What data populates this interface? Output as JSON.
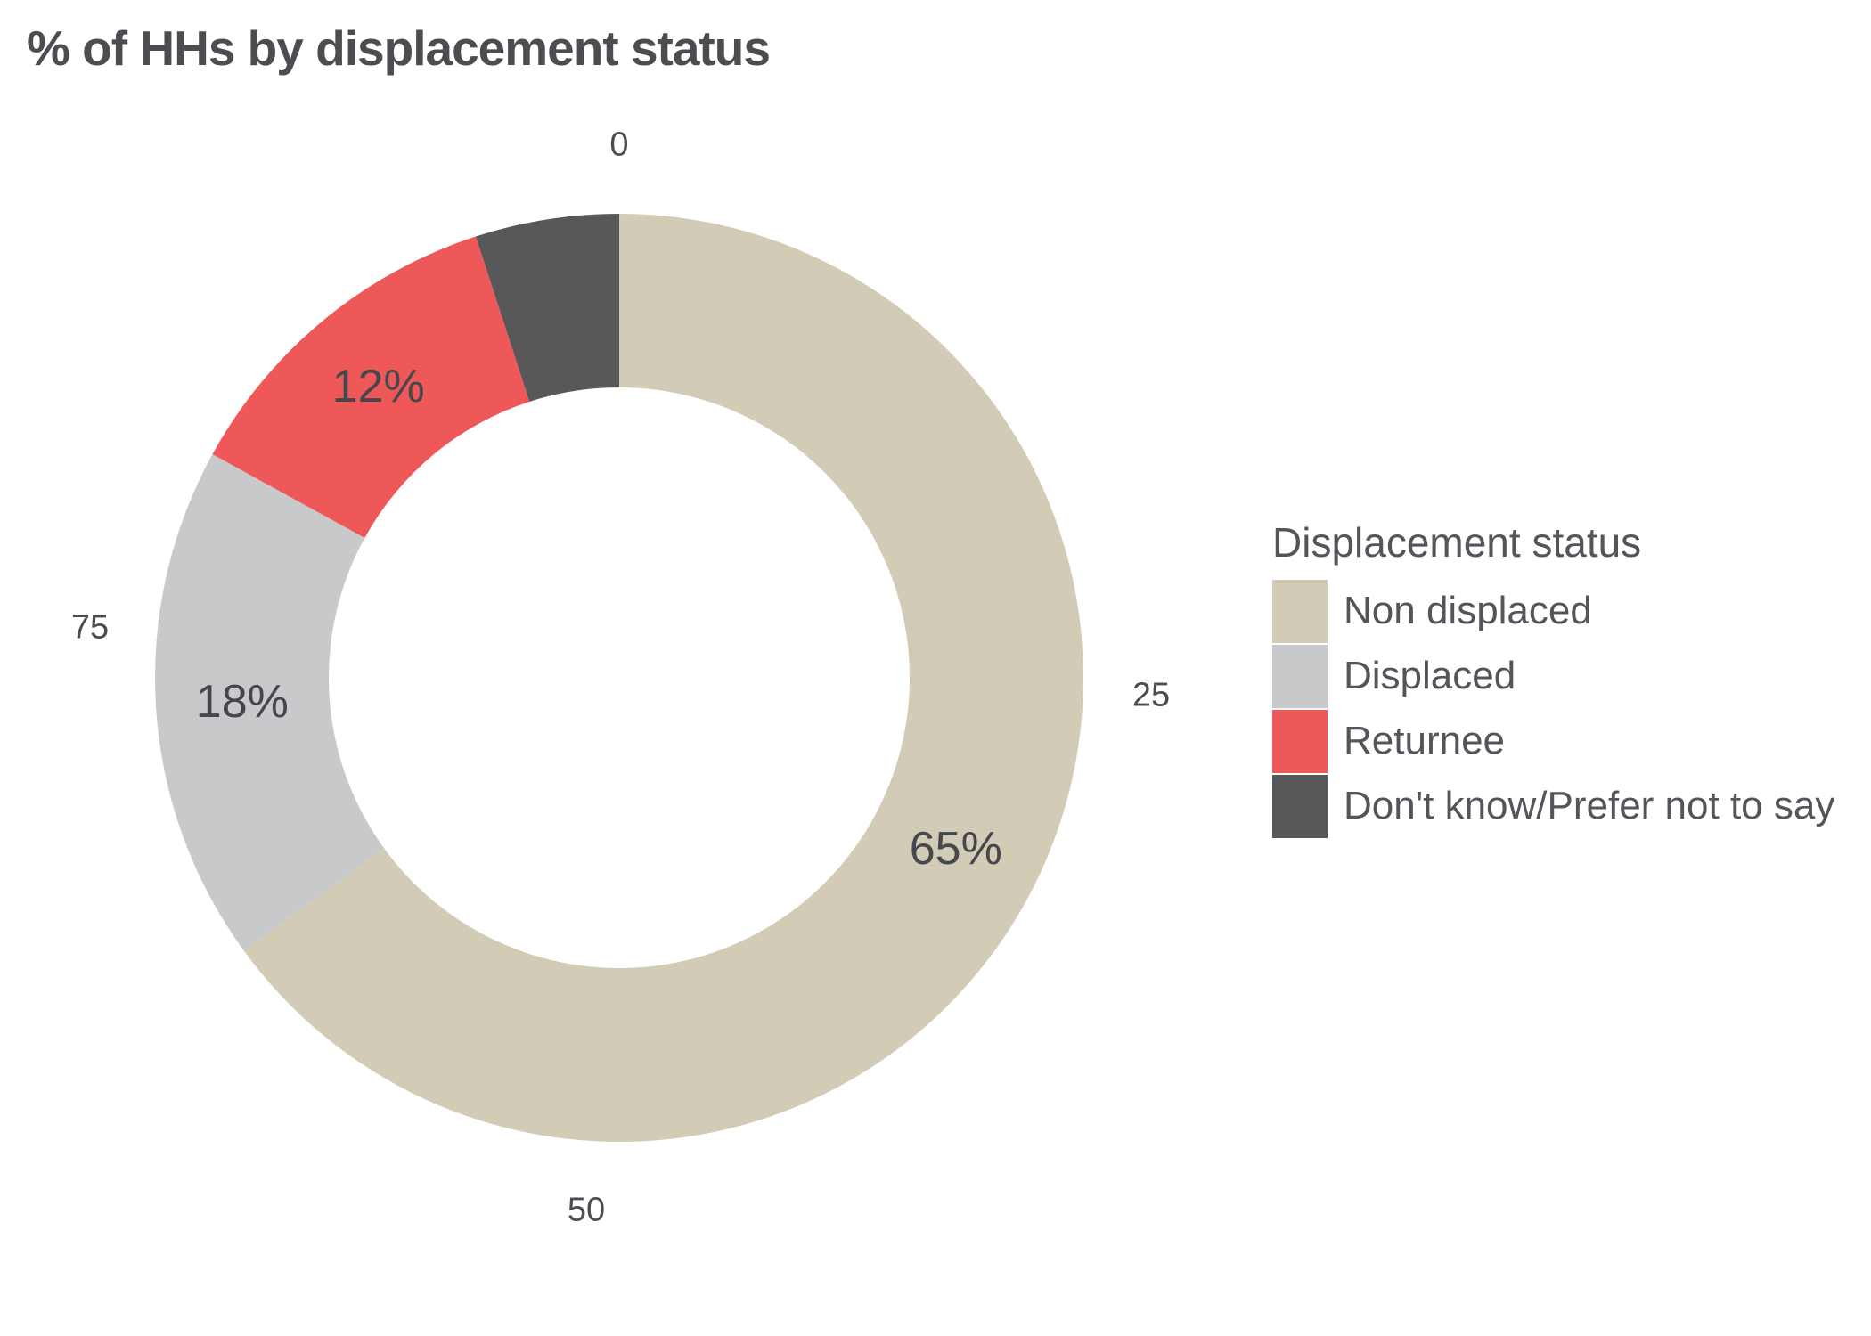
{
  "title": "% of HHs by displacement status",
  "chart_data": {
    "type": "pie",
    "subtype": "donut",
    "title": "% of HHs by displacement status",
    "categories": [
      "Non displaced",
      "Displaced",
      "Returnee",
      "Don't know/Prefer not to say"
    ],
    "values": [
      65,
      18,
      12,
      5
    ],
    "slice_labels": [
      "65%",
      "18%",
      "12%",
      ""
    ],
    "colors": [
      "#D2CBB6",
      "#C8C9CB",
      "#EE5859",
      "#58585B"
    ],
    "axis_ticks": [
      "0",
      "25",
      "50",
      "75"
    ],
    "axis_tick_values": [
      0,
      25,
      50,
      75
    ],
    "axis_range": [
      0,
      100
    ],
    "start_angle_deg": 0,
    "direction": "clockwise",
    "legend_position": "right",
    "legend_title": "Displacement status"
  },
  "legend": {
    "title": "Displacement status",
    "items": [
      {
        "label": "Non displaced",
        "color": "#D2CBB6"
      },
      {
        "label": "Displaced",
        "color": "#C8C9CB"
      },
      {
        "label": "Returnee",
        "color": "#EE5859"
      },
      {
        "label": "Don't know/Prefer not to say",
        "color": "#58585B"
      }
    ]
  },
  "style": {
    "title_color": "#4C4D51",
    "label_color": "#45474C",
    "tick_color": "#4C4D52",
    "legend_text_color": "#54555A",
    "background": "#FFFFFF"
  }
}
